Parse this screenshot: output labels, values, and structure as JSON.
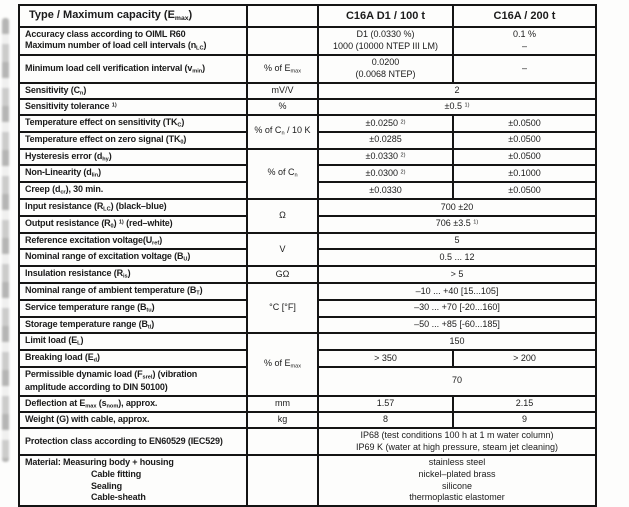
{
  "page": {
    "background": "#fdfdfc",
    "ink": "#1b1b1b",
    "border_color": "#141414"
  },
  "header": {
    "type_label": "Type / Maximum capacity  (E_{max})",
    "unit_header": "",
    "product1": "C16A D1 / 100 t",
    "product2": "C16A / 200 t"
  },
  "rows": {
    "accuracy": {
      "label_line1": "Accuracy class according to OIML  R60",
      "label_line2": "Maximum number of load cell intervals (n_{LC})",
      "unit": "",
      "p1_line1": "D1 (0.0330 %)",
      "p1_line2": "1000 (10000 NTEP III LM)",
      "p2_line1": "0.1 %",
      "p2_line2": "–"
    },
    "min_verification": {
      "label": "Minimum load cell verification interval (v_{min})",
      "unit": "% of E_{max}",
      "p1_line1": "0.0200",
      "p1_line2": "(0.0068 NTEP)",
      "p2": "–"
    },
    "sensitivity": {
      "label": "Sensitivity (C_{n})",
      "unit": "mV/V",
      "value": "2"
    },
    "sensitivity_tolerance": {
      "label": "Sensitivity tolerance ^{1)}",
      "unit": "%",
      "value": "±0.5 ^{1)}"
    },
    "tk_sensitivity": {
      "label": "Temperature effect on sensitivity (TK_{C})",
      "unit": "% of C_{n} / 10 K",
      "p1": "±0.0250 ^{2)}",
      "p2": "±0.0500"
    },
    "tk_zero": {
      "label": "Temperature effect on zero signal (TK_{0})",
      "p1": "±0.0285",
      "p2": "±0.0500"
    },
    "hysteresis": {
      "label": "Hysteresis error (d_{hy})",
      "unit": "% of C_{n}",
      "p1": "±0.0330 ^{2)}",
      "p2": "±0.0500"
    },
    "nonlinearity": {
      "label": "Non-Linearity (d_{lin})",
      "p1": "±0.0300 ^{2)}",
      "p2": "±0.1000"
    },
    "creep": {
      "label": "Creep (d_{cr}), 30 min.",
      "p1": "±0.0330",
      "p2": "±0.0500"
    },
    "input_resistance": {
      "label": "Input resistance (R_{LC}) (black–blue)",
      "unit": "Ω",
      "value": "700 ±20"
    },
    "output_resistance": {
      "label": "Output resistance (R_{0}) ^{1)} (red–white)",
      "value": "706 ±3.5 ^{1)}"
    },
    "ref_excitation": {
      "label": "Reference excitation voltage(U_{ref})",
      "unit": "V",
      "value": "5"
    },
    "nom_excitation": {
      "label": "Nominal range of excitation voltage (B_{U})",
      "value": "0.5 ... 12"
    },
    "insulation": {
      "label": "Insulation resistance (R_{is})",
      "unit": "GΩ",
      "value": "> 5"
    },
    "ambient_temp": {
      "label": "Nominal range of ambient temperature (B_{T})",
      "unit": "°C [°F]",
      "value": "–10 ... +40 [15...105]"
    },
    "service_temp": {
      "label": "Service temperature range (B_{tu})",
      "value": "–30 ... +70 [-20...160]"
    },
    "storage_temp": {
      "label": "Storage temperature range (B_{tl})",
      "value": "–50 ... +85 [-60...185]"
    },
    "limit_load": {
      "label": "Limit load (E_{L})",
      "unit": "% of E_{max}",
      "value": "150"
    },
    "breaking_load": {
      "label": "Breaking load (E_{d})",
      "p1": "> 350",
      "p2": "> 200"
    },
    "dynamic_load": {
      "label_line1": "Permissible dynamic load (F_{srel}) (vibration",
      "label_line2": "amplitude according to  DIN 50100)",
      "value": "70"
    },
    "deflection": {
      "label": "Deflection at E_{max} (s_{nom}), approx.",
      "unit": "mm",
      "p1": "1.57",
      "p2": "2.15"
    },
    "weight": {
      "label": "Weight (G) with cable, approx.",
      "unit": "kg",
      "p1": "8",
      "p2": "9"
    },
    "protection": {
      "label": "Protection class according to EN60529 (IEC529)",
      "unit": "",
      "value_line1": "IP68 (test conditions 100 h at 1 m water column)",
      "value_line2": "IP69 K (water at high pressure, steam jet cleaning)"
    },
    "material": {
      "label_line1": "Material: Measuring body + housing",
      "label_line2": "Cable fitting",
      "label_line3": "Sealing",
      "label_line4": "Cable-sheath",
      "unit": "",
      "value_line1": "stainless steel",
      "value_line2": "nickel–plated brass",
      "value_line3": "silicone",
      "value_line4": "thermoplastic elastomer"
    }
  }
}
